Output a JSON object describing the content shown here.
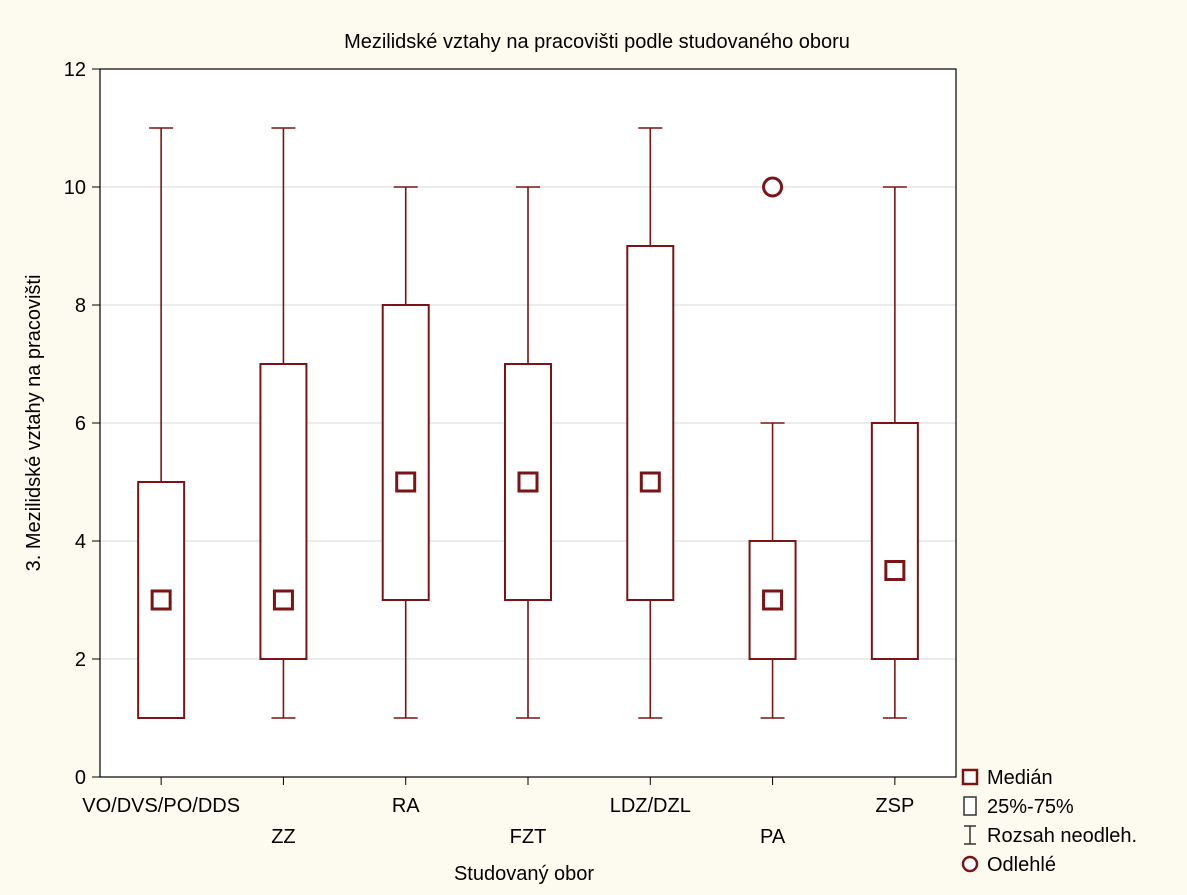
{
  "chart_data": {
    "type": "box",
    "title": "Mezilidské vztahy na pracovišti podle studovaného oboru",
    "xlabel": "Studovaný obor",
    "ylabel": "3. Mezilidské vztahy na pracovišti",
    "ylim": [
      0,
      12
    ],
    "yticks": [
      "0",
      "2",
      "4",
      "6",
      "8",
      "10",
      "12"
    ],
    "grid": true,
    "legend_position": "bottom-right",
    "colors": {
      "box": "#7a1416",
      "background": "#fdfaef",
      "plot": "#ffffff",
      "grid": "#d9d9d9"
    },
    "categories": [
      "VO/DVS/PO/DDS",
      "ZZ",
      "RA",
      "FZT",
      "LDZ/DZL",
      "PA",
      "ZSP"
    ],
    "boxes": [
      {
        "category": "VO/DVS/PO/DDS",
        "median": 3,
        "q1": 1,
        "q3": 5,
        "min": 1,
        "max": 11,
        "outliers": []
      },
      {
        "category": "ZZ",
        "median": 3,
        "q1": 2,
        "q3": 7,
        "min": 1,
        "max": 11,
        "outliers": []
      },
      {
        "category": "RA",
        "median": 5,
        "q1": 3,
        "q3": 8,
        "min": 1,
        "max": 10,
        "outliers": []
      },
      {
        "category": "FZT",
        "median": 5,
        "q1": 3,
        "q3": 7,
        "min": 1,
        "max": 10,
        "outliers": []
      },
      {
        "category": "LDZ/DZL",
        "median": 5,
        "q1": 3,
        "q3": 9,
        "min": 1,
        "max": 11,
        "outliers": []
      },
      {
        "category": "PA",
        "median": 3,
        "q1": 2,
        "q3": 4,
        "min": 1,
        "max": 6,
        "outliers": [
          10
        ]
      },
      {
        "category": "ZSP",
        "median": 3.5,
        "q1": 2,
        "q3": 6,
        "min": 1,
        "max": 10,
        "outliers": []
      }
    ],
    "legend": [
      {
        "symbol": "median-square",
        "label": "Medián"
      },
      {
        "symbol": "box",
        "label": "25%-75%"
      },
      {
        "symbol": "whisker",
        "label": "Rozsah neodleh."
      },
      {
        "symbol": "outlier-circle",
        "label": "Odlehlé"
      }
    ]
  }
}
